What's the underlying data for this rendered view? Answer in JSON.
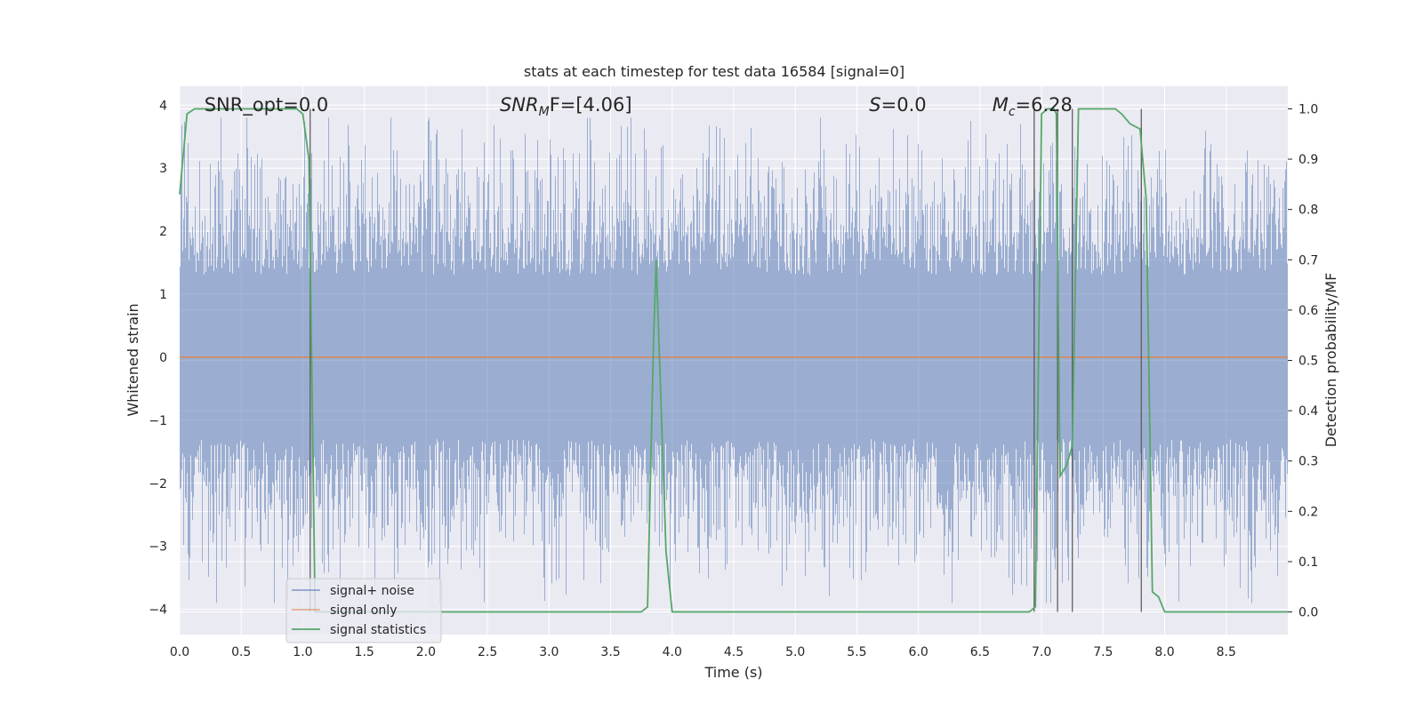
{
  "chart_data": {
    "type": "line",
    "title": "stats at each timestep for test data 16584 [signal=0]",
    "xlabel": "Time (s)",
    "ylabel": "Whitened strain",
    "y2label": "Detection probability/MF",
    "xlim": [
      0,
      9.0
    ],
    "ylim": [
      -4.4,
      4.3
    ],
    "y2lim": [
      -0.045,
      1.045
    ],
    "x_ticks": [
      0.0,
      0.5,
      1.0,
      1.5,
      2.0,
      2.5,
      3.0,
      3.5,
      4.0,
      4.5,
      5.0,
      5.5,
      6.0,
      6.5,
      7.0,
      7.5,
      8.0,
      8.5
    ],
    "x_tick_labels": [
      "0.0",
      "0.5",
      "1.0",
      "1.5",
      "2.0",
      "2.5",
      "3.0",
      "3.5",
      "4.0",
      "4.5",
      "5.0",
      "5.5",
      "6.0",
      "6.5",
      "7.0",
      "7.5",
      "8.0",
      "8.5"
    ],
    "y_ticks": [
      4,
      3,
      2,
      1,
      0,
      -1,
      -2,
      -3,
      -4
    ],
    "y_tick_labels": [
      "4",
      "3",
      "2",
      "1",
      "0",
      "−1",
      "−2",
      "−3",
      "−4"
    ],
    "y2_ticks": [
      1.0,
      0.9,
      0.8,
      0.7,
      0.6,
      0.5,
      0.4,
      0.3,
      0.2,
      0.1,
      0.0
    ],
    "y2_tick_labels": [
      "1.0",
      "0.9",
      "0.8",
      "0.7",
      "0.6",
      "0.5",
      "0.4",
      "0.3",
      "0.2",
      "0.1",
      "0.0"
    ],
    "grid": true,
    "legend_position": "lower-left",
    "colors": {
      "background": "#eaeaf2",
      "grid": "#ffffff",
      "noise": "#4c72b0",
      "signal_only": "#dd8452",
      "statistics": "#55a868",
      "vlines": "#555555"
    },
    "annotations": [
      {
        "prefix": "SNR_opt=0.0",
        "italic": "",
        "sub": "",
        "rest": "",
        "x": 0.2
      },
      {
        "prefix": "",
        "italic": "SNR",
        "sub": "M",
        "rest": "F=[4.06]",
        "x": 2.6
      },
      {
        "prefix": "",
        "italic": "S",
        "sub": "",
        "rest": "=0.0",
        "x": 5.6
      },
      {
        "prefix": "",
        "italic": "M",
        "sub": "c",
        "rest": "=6.28",
        "x": 6.6
      }
    ],
    "series": [
      {
        "name": "signal+ noise",
        "color": "#4c72b0",
        "style": "noise",
        "amplitude_range": [
          -3.9,
          3.8
        ]
      },
      {
        "name": "signal only",
        "color": "#dd8452",
        "x": [
          0,
          9.0
        ],
        "y": [
          0,
          0
        ]
      },
      {
        "name": "signal statistics",
        "color": "#55a868",
        "axis": "right",
        "x": [
          0.0,
          0.06,
          0.12,
          0.2,
          0.6,
          0.95,
          1.0,
          1.05,
          1.1,
          1.15,
          1.2,
          1.4,
          2.0,
          2.4,
          2.5,
          3.0,
          3.5,
          3.75,
          3.8,
          3.85,
          3.87,
          3.95,
          4.0,
          4.3,
          5.0,
          6.0,
          6.5,
          6.9,
          6.95,
          7.0,
          7.05,
          7.1,
          7.12,
          7.15,
          7.2,
          7.25,
          7.3,
          7.35,
          7.5,
          7.6,
          7.65,
          7.72,
          7.8,
          7.85,
          7.9,
          7.95,
          8.0,
          8.5,
          9.0
        ],
        "y": [
          0.83,
          0.99,
          1.0,
          1.0,
          1.0,
          1.0,
          0.99,
          0.9,
          0.0,
          0.0,
          0.0,
          0.0,
          0.0,
          0.0,
          0.0,
          0.0,
          0.0,
          0.0,
          0.01,
          0.55,
          0.7,
          0.12,
          0.0,
          0.0,
          0.0,
          0.0,
          0.0,
          0.0,
          0.01,
          0.99,
          1.0,
          1.0,
          0.99,
          0.27,
          0.29,
          0.33,
          1.0,
          1.0,
          1.0,
          1.0,
          0.99,
          0.97,
          0.96,
          0.82,
          0.04,
          0.03,
          0.0,
          0.0,
          0.0
        ]
      }
    ],
    "vlines": [
      1.06,
      6.94,
      7.13,
      7.25,
      7.81
    ]
  }
}
